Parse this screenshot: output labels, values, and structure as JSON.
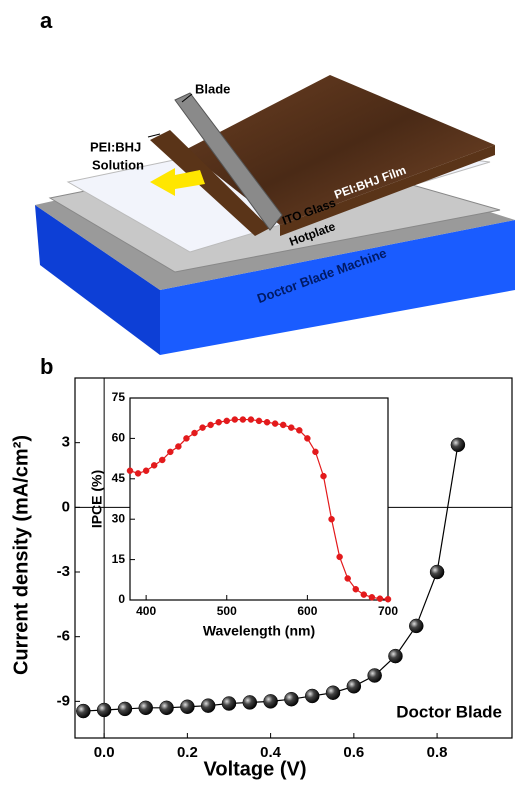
{
  "figure_a": {
    "panel_label": "a",
    "blade": "Blade",
    "solution": [
      "PEI:BHJ",
      "Solution"
    ],
    "film": "PEI:BHJ Film",
    "glass": "ITO Glass",
    "hotplate": "Hotplate",
    "machine": "Doctor Blade Machine"
  },
  "chart_data": {
    "type": "line",
    "panel_label": "b",
    "x_label": "Voltage (V)",
    "y_label": "Current density (mA/cm²)",
    "x": [
      -0.05,
      0,
      0.05,
      0.1,
      0.15,
      0.2,
      0.25,
      0.3,
      0.35,
      0.4,
      0.45,
      0.5,
      0.55,
      0.6,
      0.65,
      0.7,
      0.75,
      0.8,
      0.85
    ],
    "series": [
      {
        "name": "Doctor Blade",
        "color": "#000000",
        "values": [
          -9.45,
          -9.4,
          -9.35,
          -9.3,
          -9.3,
          -9.25,
          -9.2,
          -9.1,
          -9.05,
          -9.0,
          -8.9,
          -8.75,
          -8.6,
          -8.3,
          -7.8,
          -6.9,
          -5.5,
          -3.0,
          2.9
        ]
      }
    ],
    "xlim": [
      -0.07,
      0.98
    ],
    "ylim": [
      -10.7,
      6
    ],
    "xticks": [
      {
        "value": 0,
        "label": "0.0"
      },
      0.2,
      0.4,
      0.6,
      0.8
    ],
    "yticks": [
      -9,
      -6,
      -3,
      0,
      3
    ],
    "inset": {
      "type": "line",
      "x_label": "Wavelength (nm)",
      "y_label": "IPCE (%)",
      "x": [
        380,
        390,
        400,
        410,
        420,
        430,
        440,
        450,
        460,
        470,
        480,
        490,
        500,
        510,
        520,
        530,
        540,
        550,
        560,
        570,
        580,
        590,
        600,
        610,
        620,
        630,
        640,
        650,
        660,
        670,
        680,
        690,
        700
      ],
      "series": [
        {
          "color": "#e31a1c",
          "values": [
            48,
            47,
            48,
            50,
            52,
            55,
            57,
            60,
            62,
            64,
            65,
            66,
            66.5,
            67,
            67,
            67,
            66.5,
            66,
            65.5,
            65,
            64,
            63,
            60,
            55,
            46,
            30,
            16,
            8,
            4,
            2,
            1,
            0.5,
            0.3
          ]
        }
      ],
      "xlim": [
        380,
        700
      ],
      "ylim": [
        0,
        75
      ],
      "xticks": [
        400,
        500,
        600,
        700
      ],
      "yticks": [
        0,
        15,
        30,
        45,
        60,
        75
      ]
    }
  }
}
